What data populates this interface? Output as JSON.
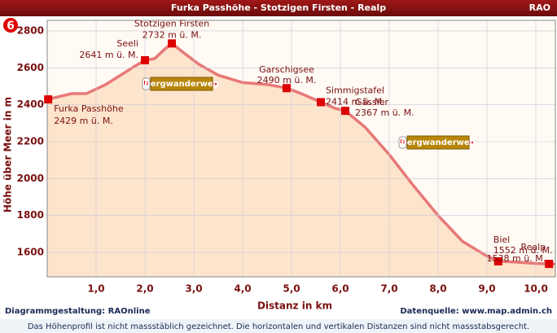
{
  "header": {
    "title": "Furka Passhöhe - Stotzigen Firsten - Realp",
    "brand": "RAO",
    "badge": "6"
  },
  "chart_data": {
    "type": "area",
    "y_label": "Höhe über Meer in m",
    "x_label": "Distanz in km",
    "xlim": [
      0,
      10.4
    ],
    "ylim": [
      1468,
      2857
    ],
    "xticks": [
      {
        "value": 1,
        "label": "1,0"
      },
      {
        "value": 2,
        "label": "2,0"
      },
      {
        "value": 3,
        "label": "3,0"
      },
      {
        "value": 4,
        "label": "4,0"
      },
      {
        "value": 5,
        "label": "5,0"
      },
      {
        "value": 6,
        "label": "6,0"
      },
      {
        "value": 7,
        "label": "7,0"
      },
      {
        "value": 8,
        "label": "8,0"
      },
      {
        "value": 9,
        "label": "9,0"
      },
      {
        "value": 10,
        "label": "10,0"
      }
    ],
    "yticks": [
      1600,
      1800,
      2000,
      2200,
      2400,
      2600,
      2800
    ],
    "grid": true,
    "series": [
      {
        "name": "Höhenprofil",
        "color": "#e87878",
        "fill": "#fde4cc",
        "x": [
          0,
          0.5,
          0.8,
          1.2,
          1.5,
          1.8,
          2.0,
          2.2,
          2.4,
          2.55,
          2.8,
          3.1,
          3.5,
          4.0,
          4.5,
          4.9,
          5.2,
          5.6,
          5.9,
          6.1,
          6.5,
          7.0,
          7.5,
          8.0,
          8.5,
          9.0,
          9.23,
          9.6,
          10.0,
          10.4
        ],
        "values": [
          2429,
          2460,
          2460,
          2510,
          2560,
          2610,
          2641,
          2650,
          2700,
          2732,
          2680,
          2620,
          2560,
          2520,
          2510,
          2490,
          2460,
          2414,
          2380,
          2367,
          2280,
          2130,
          1960,
          1800,
          1660,
          1580,
          1552,
          1548,
          1540,
          1538
        ]
      }
    ],
    "waypoints": {
      "color": "#dd0000",
      "names": [
        "Furka Passhöhe",
        "Seeli",
        "Stotzigen Firsten",
        "Garschigsee",
        "Simmigstafel",
        "Gässler",
        "Biel",
        "Realp"
      ],
      "x": [
        0.02,
        2.0,
        2.55,
        4.9,
        5.6,
        6.1,
        9.23,
        10.27
      ],
      "values": [
        2429,
        2641,
        2732,
        2490,
        2414,
        2367,
        1552,
        1538
      ],
      "value_labels": [
        "2429 m ü. M.",
        "2641 m ü. M.",
        "2732 m ü. M.",
        "2490 m ü. M.",
        "2414 m ü. M.",
        "2367 m ü. M.",
        "1552 m ü. M.",
        "1538 m ü. M."
      ]
    },
    "signs": [
      "Bergwanderweg",
      "Bergwanderweg"
    ]
  },
  "footer": {
    "left": "Diagrammgestaltung: RAOnline",
    "right": "Datenquelle: www.map.admin.ch",
    "note": "Das Höhenprofil ist nicht massstäblich gezeichnet. Die horizontalen und vertikalen Distanzen sind nicht massstabsgerecht."
  }
}
